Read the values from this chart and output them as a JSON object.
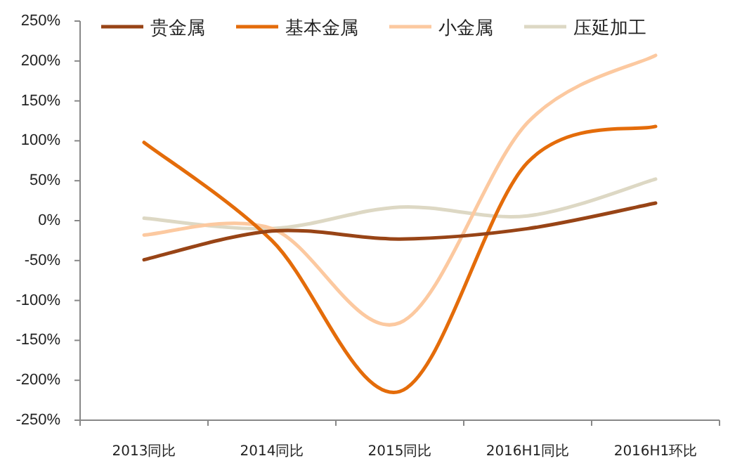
{
  "chart_data": {
    "type": "line",
    "categories": [
      "2013同比",
      "2014同比",
      "2015同比",
      "2016H1同比",
      "2016H1环比"
    ],
    "series": [
      {
        "name": "贵金属",
        "color": "#984416",
        "values": [
          -49,
          -13,
          -23,
          -10,
          22
        ]
      },
      {
        "name": "基本金属",
        "color": "#e46c0a",
        "values": [
          98,
          -25,
          -214,
          73,
          118
        ]
      },
      {
        "name": "小金属",
        "color": "#fcc9a0",
        "values": [
          -18,
          -10,
          -128,
          123,
          207
        ]
      },
      {
        "name": "压延加工",
        "color": "#ddd8c4",
        "values": [
          3,
          -10,
          17,
          6,
          52
        ]
      }
    ],
    "ylim": [
      -250,
      250
    ],
    "yticks": [
      {
        "value": -250,
        "label": "-250%"
      },
      {
        "value": -200,
        "label": "-200%"
      },
      {
        "value": -150,
        "label": "-150%"
      },
      {
        "value": -100,
        "label": "-100%"
      },
      {
        "value": -50,
        "label": "-50%"
      },
      {
        "value": 0,
        "label": "0%"
      },
      {
        "value": 50,
        "label": "50%"
      },
      {
        "value": 100,
        "label": "100%"
      },
      {
        "value": 150,
        "label": "150%"
      },
      {
        "value": 200,
        "label": "200%"
      },
      {
        "value": 250,
        "label": "250%"
      }
    ],
    "legend": "top",
    "grid": false,
    "marker": "none",
    "line_style": "solid"
  }
}
